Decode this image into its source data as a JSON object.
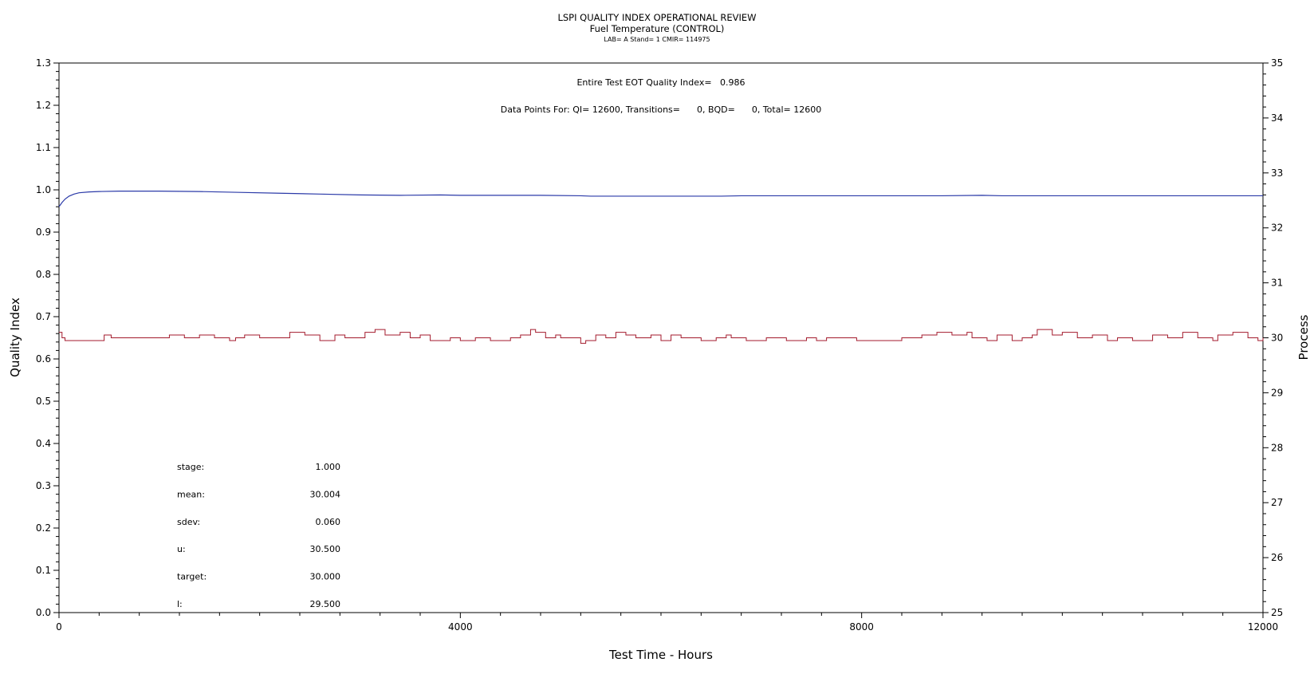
{
  "header": {
    "title": "LSPI QUALITY INDEX OPERATIONAL REVIEW",
    "subtitle": "Fuel Temperature (CONTROL)",
    "info": "LAB= A Stand= 1 CMIR= 114975"
  },
  "annotations": {
    "quality_index": "Entire Test EOT Quality Index=   0.986",
    "data_points": "Data Points For: QI= 12600, Transitions=      0, BQD=      0, Total= 12600"
  },
  "stats": [
    {
      "label": "stage:",
      "value": "1.000"
    },
    {
      "label": "mean:",
      "value": "30.004"
    },
    {
      "label": "sdev:",
      "value": "0.060"
    },
    {
      "label": "u:",
      "value": "30.500"
    },
    {
      "label": "target:",
      "value": "30.000"
    },
    {
      "label": "l:",
      "value": "29.500"
    }
  ],
  "colors": {
    "quality_index_line": "#2b3aa8",
    "process_line": "#a31a2c",
    "axis": "#000000"
  },
  "chart_data": {
    "type": "line",
    "title": "LSPI QUALITY INDEX OPERATIONAL REVIEW",
    "subtitle": "Fuel Temperature (CONTROL)",
    "xlabel": "Test Time - Hours",
    "ylabel_left": "Quality Index",
    "ylabel_right": "Process",
    "xlim": [
      0,
      12000
    ],
    "ylim_left": [
      0.0,
      1.3
    ],
    "ylim_right": [
      25,
      35
    ],
    "x_ticks": [
      0,
      4000,
      8000,
      12000
    ],
    "x_tick_labels": [
      "0",
      "4000",
      "8000",
      "12000"
    ],
    "y_left_ticks": [
      0.0,
      0.1,
      0.2,
      0.3,
      0.4,
      0.5,
      0.6,
      0.7,
      0.8,
      0.9,
      1.0,
      1.1,
      1.2,
      1.3
    ],
    "y_left_tick_labels": [
      "0.0",
      "0.1",
      "0.2",
      "0.3",
      "0.4",
      "0.5",
      "0.6",
      "0.7",
      "0.8",
      "0.9",
      "1.0",
      "1.1",
      "1.2",
      "1.3"
    ],
    "y_right_ticks": [
      25,
      26,
      27,
      28,
      29,
      30,
      31,
      32,
      33,
      34,
      35
    ],
    "y_right_tick_labels": [
      "25",
      "26",
      "27",
      "28",
      "29",
      "30",
      "31",
      "32",
      "33",
      "34",
      "35"
    ],
    "grid": false,
    "series": [
      {
        "axis": "left",
        "x": [
          0,
          30,
          60,
          100,
          150,
          200,
          300,
          400,
          600,
          800,
          1000,
          1400,
          1800,
          2200,
          2600,
          3000,
          3400,
          3800,
          4000,
          4400,
          4800,
          5200,
          5300,
          6000,
          6600,
          6800,
          7200,
          8000,
          8800,
          9200,
          9400,
          10000,
          11000,
          12000
        ],
        "values": [
          0.96,
          0.97,
          0.978,
          0.985,
          0.99,
          0.993,
          0.995,
          0.996,
          0.997,
          0.997,
          0.997,
          0.996,
          0.994,
          0.992,
          0.99,
          0.988,
          0.987,
          0.988,
          0.987,
          0.987,
          0.987,
          0.986,
          0.985,
          0.985,
          0.985,
          0.986,
          0.986,
          0.986,
          0.986,
          0.987,
          0.986,
          0.986,
          0.986,
          0.986
        ]
      },
      {
        "axis": "right",
        "x": [
          0,
          30,
          60,
          450,
          520,
          1100,
          1250,
          1400,
          1550,
          1700,
          1760,
          1850,
          2000,
          2300,
          2450,
          2600,
          2750,
          2850,
          3050,
          3150,
          3250,
          3400,
          3500,
          3600,
          3700,
          3900,
          4000,
          4150,
          4300,
          4500,
          4600,
          4700,
          4750,
          4850,
          4950,
          5000,
          5200,
          5250,
          5350,
          5450,
          5550,
          5650,
          5750,
          5900,
          6000,
          6100,
          6200,
          6400,
          6550,
          6650,
          6700,
          6850,
          7050,
          7250,
          7450,
          7550,
          7650,
          7800,
          7950,
          8400,
          8600,
          8750,
          8900,
          9050,
          9100,
          9250,
          9350,
          9500,
          9600,
          9700,
          9750,
          9900,
          10000,
          10150,
          10300,
          10450,
          10550,
          10700,
          10900,
          11050,
          11200,
          11350,
          11500,
          11550,
          11700,
          11850,
          11950,
          12000
        ],
        "values": [
          30.1,
          30.0,
          29.95,
          30.05,
          30.0,
          30.05,
          30.0,
          30.05,
          30.0,
          29.95,
          30.0,
          30.05,
          30.0,
          30.1,
          30.05,
          29.95,
          30.05,
          30.0,
          30.1,
          30.15,
          30.05,
          30.1,
          30.0,
          30.05,
          29.95,
          30.0,
          29.95,
          30.0,
          29.95,
          30.0,
          30.05,
          30.15,
          30.1,
          30.0,
          30.05,
          30.0,
          29.9,
          29.95,
          30.05,
          30.0,
          30.1,
          30.05,
          30.0,
          30.05,
          29.95,
          30.05,
          30.0,
          29.95,
          30.0,
          30.05,
          30.0,
          29.95,
          30.0,
          29.95,
          30.0,
          29.95,
          30.0,
          30.0,
          29.95,
          30.0,
          30.05,
          30.1,
          30.05,
          30.1,
          30.0,
          29.95,
          30.05,
          29.95,
          30.0,
          30.05,
          30.15,
          30.05,
          30.1,
          30.0,
          30.05,
          29.95,
          30.0,
          29.95,
          30.05,
          30.0,
          30.1,
          30.0,
          29.95,
          30.05,
          30.1,
          30.0,
          29.95,
          30.0
        ]
      }
    ]
  }
}
